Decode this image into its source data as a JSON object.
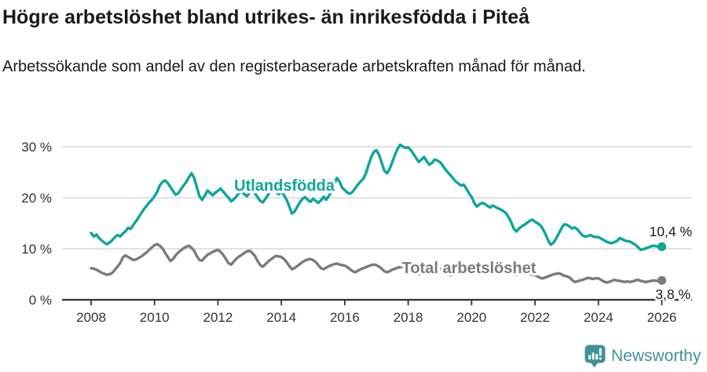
{
  "header": {
    "title": "Högre arbetslöshet bland utrikes- än inrikesfödda i Piteå",
    "subtitle": "Arbetssökande som andel av den registerbaserade arbetskraften månad för månad."
  },
  "footer": {
    "brand": "Newsworthy",
    "logo_icon": "bar-chart-speech-bubble-icon"
  },
  "colors": {
    "accent_teal": "#0da59d",
    "series_gray": "#7b7b7b",
    "gridline": "#d8d8d8",
    "axis": "#333333",
    "text": "#1a1a1a",
    "logo_teal": "#40919a"
  },
  "chart_data": {
    "type": "line",
    "title": "",
    "xlabel": "",
    "ylabel": "",
    "x_unit": "year",
    "x_start_year": 2008,
    "x_step_months": 1,
    "x_end_year": 2026,
    "ylim": [
      0,
      30
    ],
    "grid": "horizontal-only",
    "x_ticks": [
      2008,
      2010,
      2012,
      2014,
      2016,
      2018,
      2020,
      2022,
      2024,
      2026
    ],
    "y_ticks": [
      {
        "value": 0,
        "label": "0 %"
      },
      {
        "value": 10,
        "label": "10 %"
      },
      {
        "value": 20,
        "label": "20 %"
      },
      {
        "value": 30,
        "label": "30 %"
      }
    ],
    "series": [
      {
        "name": "Utlandsfödda",
        "color": "#0da59d",
        "end_label": "10,4 %",
        "end_value": 10.4,
        "values": [
          13.1,
          12.4,
          12.8,
          12.1,
          11.6,
          11.2,
          10.9,
          11.2,
          11.7,
          12.3,
          12.7,
          12.4,
          13.0,
          13.4,
          14.1,
          13.9,
          14.7,
          15.4,
          16.2,
          17.0,
          17.8,
          18.4,
          19.1,
          19.6,
          20.3,
          21.2,
          22.4,
          23.1,
          23.4,
          22.9,
          22.1,
          21.3,
          20.6,
          20.9,
          21.7,
          22.4,
          23.1,
          24.0,
          24.8,
          23.9,
          22.1,
          20.3,
          19.6,
          20.4,
          21.4,
          21.0,
          20.5,
          21.0,
          21.4,
          21.8,
          21.2,
          20.6,
          20.0,
          19.3,
          19.7,
          20.3,
          20.9,
          21.2,
          20.7,
          20.3,
          21.0,
          21.5,
          20.9,
          20.1,
          19.4,
          19.1,
          19.8,
          20.6,
          21.3,
          21.6,
          21.1,
          20.7,
          21.2,
          20.5,
          19.6,
          18.3,
          16.9,
          17.3,
          18.2,
          19.1,
          19.8,
          20.1,
          19.6,
          19.2,
          19.8,
          19.4,
          19.0,
          19.5,
          20.2,
          19.6,
          20.4,
          21.3,
          22.5,
          23.9,
          23.2,
          22.0,
          21.5,
          21.0,
          20.8,
          21.2,
          21.9,
          22.6,
          23.2,
          23.7,
          24.8,
          26.4,
          28.0,
          29.0,
          29.3,
          28.4,
          26.8,
          25.3,
          24.8,
          25.7,
          27.0,
          28.4,
          29.6,
          30.4,
          30.0,
          29.8,
          29.9,
          29.3,
          28.6,
          27.8,
          27.0,
          27.5,
          28.0,
          27.2,
          26.5,
          26.8,
          27.5,
          27.3,
          27.0,
          26.4,
          25.6,
          25.0,
          24.4,
          23.8,
          23.2,
          22.8,
          22.4,
          22.6,
          21.8,
          20.9,
          20.2,
          19.0,
          18.3,
          18.7,
          19.0,
          18.8,
          18.4,
          18.1,
          18.5,
          18.2,
          17.9,
          17.7,
          17.4,
          17.0,
          16.2,
          15.2,
          13.9,
          13.4,
          14.0,
          14.4,
          14.7,
          15.1,
          15.5,
          15.7,
          15.3,
          15.0,
          14.6,
          13.9,
          12.8,
          11.6,
          10.8,
          11.2,
          12.0,
          13.0,
          14.0,
          14.8,
          14.7,
          14.4,
          14.0,
          14.2,
          13.8,
          13.2,
          12.6,
          12.4,
          12.5,
          12.7,
          12.4,
          12.3,
          12.3,
          12.0,
          11.7,
          11.4,
          11.2,
          11.1,
          11.3,
          11.5,
          12.1,
          11.9,
          11.6,
          11.5,
          11.4,
          11.1,
          10.8,
          10.3,
          9.8,
          9.9,
          10.1,
          10.3,
          10.5,
          10.6,
          10.5,
          10.4,
          10.4
        ]
      },
      {
        "name": "Total arbetslöshet",
        "color": "#7b7b7b",
        "end_label": "3,8 %",
        "end_value": 3.8,
        "values": [
          6.2,
          6.1,
          5.9,
          5.6,
          5.3,
          5.1,
          4.9,
          5.0,
          5.3,
          5.9,
          6.5,
          7.2,
          8.3,
          8.7,
          8.4,
          8.1,
          7.8,
          7.9,
          8.2,
          8.5,
          8.9,
          9.3,
          9.8,
          10.3,
          10.7,
          10.9,
          10.6,
          10.1,
          9.2,
          8.4,
          7.6,
          8.0,
          8.7,
          9.3,
          9.7,
          10.1,
          10.4,
          10.6,
          10.2,
          9.6,
          8.6,
          7.8,
          7.7,
          8.3,
          8.8,
          9.1,
          9.4,
          9.6,
          9.8,
          9.4,
          8.8,
          8.0,
          7.2,
          6.9,
          7.5,
          8.1,
          8.5,
          8.8,
          9.2,
          9.5,
          9.6,
          9.2,
          8.6,
          7.6,
          6.8,
          6.5,
          7.0,
          7.5,
          7.9,
          8.3,
          8.6,
          8.5,
          8.4,
          8.0,
          7.4,
          6.6,
          6.0,
          6.2,
          6.6,
          7.0,
          7.4,
          7.7,
          7.9,
          8.0,
          7.8,
          7.4,
          6.8,
          6.2,
          6.0,
          6.3,
          6.6,
          6.8,
          7.0,
          7.1,
          6.9,
          6.8,
          6.7,
          6.4,
          6.0,
          5.6,
          5.4,
          5.7,
          6.0,
          6.2,
          6.4,
          6.6,
          6.8,
          6.9,
          6.8,
          6.5,
          6.1,
          5.6,
          5.4,
          5.6,
          5.9,
          6.1,
          6.3,
          6.4,
          6.5,
          6.6,
          6.5,
          6.2,
          5.8,
          5.3,
          5.0,
          5.2,
          5.5,
          5.7,
          5.9,
          6.0,
          6.1,
          6.2,
          6.1,
          5.9,
          5.5,
          5.1,
          4.8,
          5.0,
          5.3,
          5.5,
          5.7,
          5.9,
          6.0,
          6.2,
          6.4,
          6.3,
          6.6,
          6.9,
          7.0,
          6.8,
          6.6,
          6.4,
          6.2,
          6.0,
          5.9,
          5.8,
          5.9,
          5.8,
          5.6,
          5.3,
          5.0,
          4.9,
          5.0,
          5.1,
          5.2,
          5.1,
          5.0,
          4.9,
          4.8,
          4.6,
          4.3,
          4.2,
          4.4,
          4.6,
          4.8,
          5.0,
          5.1,
          5.2,
          5.0,
          4.7,
          4.6,
          4.4,
          3.9,
          3.5,
          3.6,
          3.8,
          3.9,
          4.1,
          4.3,
          4.2,
          4.1,
          4.2,
          4.2,
          3.9,
          3.6,
          3.4,
          3.5,
          3.7,
          3.9,
          3.8,
          3.7,
          3.6,
          3.5,
          3.6,
          3.5,
          3.6,
          3.8,
          3.9,
          3.7,
          3.6,
          3.5,
          3.6,
          3.7,
          3.8,
          3.7,
          3.8,
          3.8
        ]
      }
    ],
    "legend_position": "inline-labels-on-lines"
  }
}
